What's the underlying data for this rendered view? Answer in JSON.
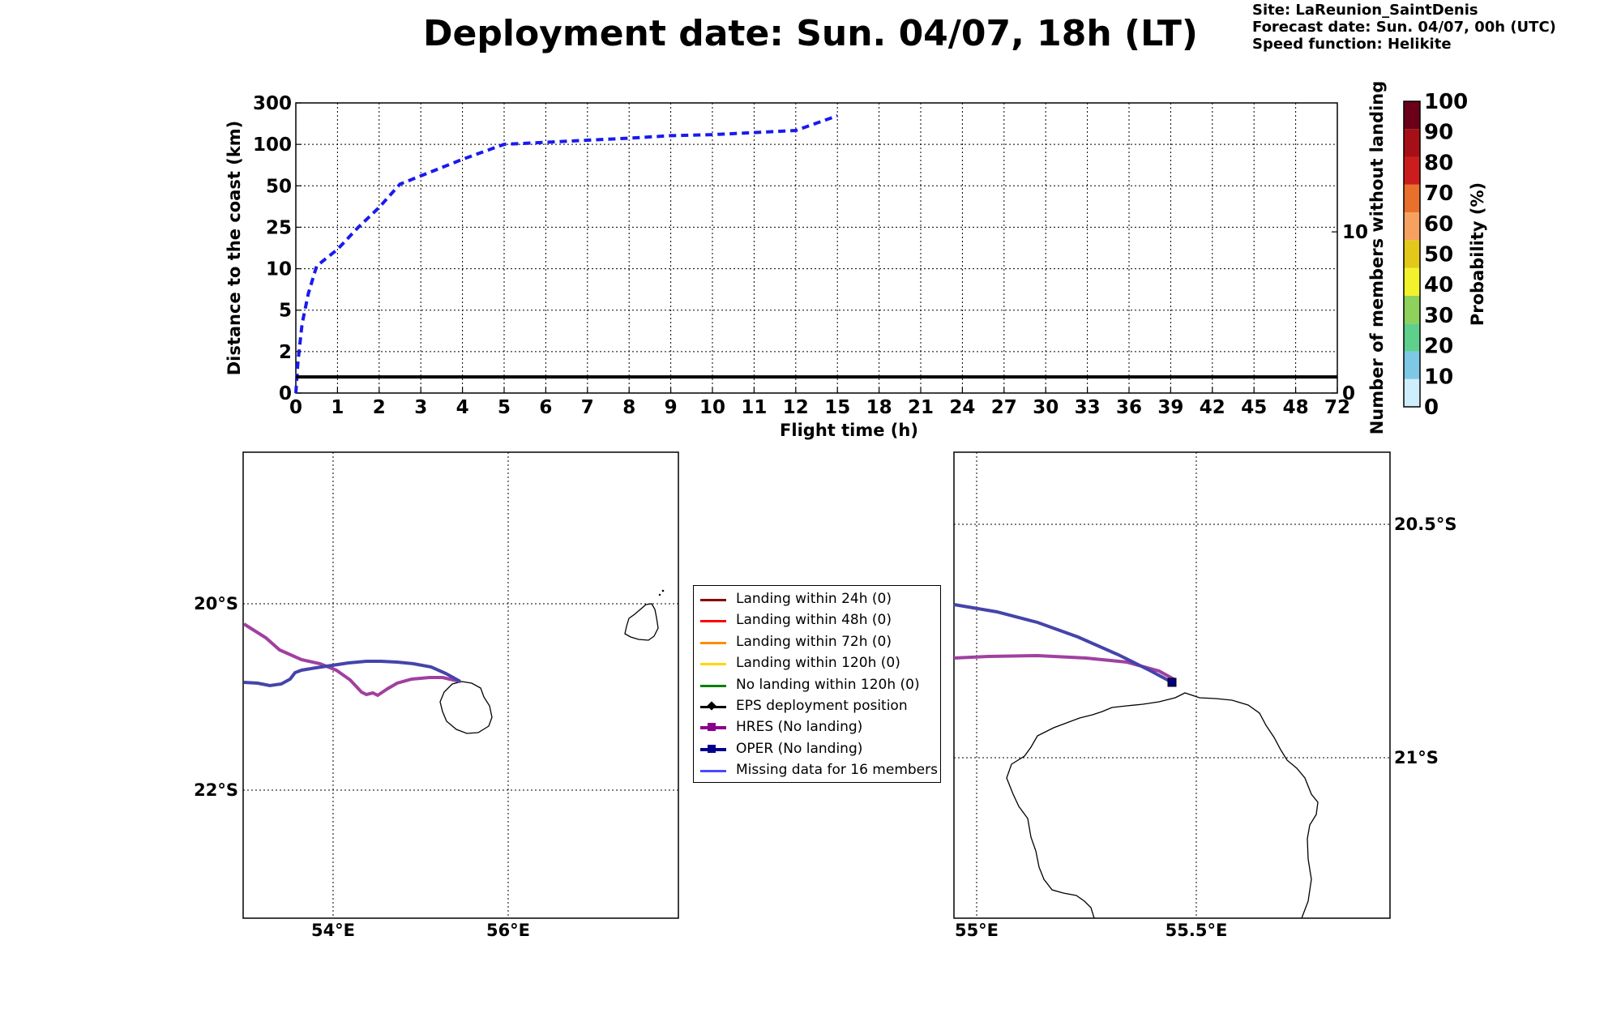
{
  "title": "Deployment date: Sun. 04/07, 18h (LT)",
  "meta": {
    "site": "Site: LaReunion_SaintDenis",
    "forecast": "Forecast date: Sun. 04/07, 00h (UTC)",
    "speed": "Speed function: Helikite"
  },
  "chart_data": [
    {
      "type": "line",
      "title": "",
      "xlabel": "Flight time (h)",
      "ylabel": "Distance to the coast (km)",
      "y2label": "Number of members without landing",
      "x_ticks": [
        "0",
        "1",
        "2",
        "3",
        "4",
        "5",
        "6",
        "7",
        "8",
        "9",
        "10",
        "11",
        "12",
        "15",
        "18",
        "21",
        "24",
        "27",
        "30",
        "33",
        "36",
        "39",
        "42",
        "45",
        "48",
        "72"
      ],
      "y_ticks": [
        "0",
        "2",
        "5",
        "10",
        "25",
        "50",
        "100",
        "300"
      ],
      "y2_ticks": [
        "0",
        "10"
      ],
      "grid": true,
      "series": [
        {
          "style": "dashed",
          "color": "#1a1aee",
          "x": [
            0,
            0.05,
            0.15,
            0.3,
            0.5,
            1.0,
            1.5,
            2.0,
            2.5,
            3.0,
            3.5,
            4.0,
            4.5,
            5.0,
            6.0,
            7.0,
            8.0,
            9.0,
            10.0,
            11.0,
            12.0,
            15.0
          ],
          "y": [
            0,
            1.5,
            4,
            7,
            11,
            17,
            25,
            37,
            52,
            62,
            72,
            82,
            91,
            100,
            110,
            120,
            130,
            142,
            147,
            157,
            167,
            238
          ]
        },
        {
          "style": "solid",
          "color": "#000000",
          "y2_constant": 1
        }
      ]
    },
    {
      "type": "colorbar",
      "label": "Probability (%)",
      "ticks": [
        "0",
        "10",
        "20",
        "30",
        "40",
        "50",
        "60",
        "70",
        "80",
        "90",
        "100"
      ],
      "colors": [
        "#cfeefd",
        "#7ec8e5",
        "#5fcf8c",
        "#8ed15b",
        "#f2f22c",
        "#e3c81a",
        "#f7a161",
        "#e8702c",
        "#cc1d1d",
        "#a50f15",
        "#6b0018"
      ]
    },
    {
      "type": "map",
      "x_ticks": [
        "54°E",
        "56°E"
      ],
      "y_ticks": [
        "20°S",
        "22°S"
      ],
      "lon_range": [
        53,
        58
      ],
      "lat_range": [
        -19.0,
        -24.0
      ]
    },
    {
      "type": "map",
      "x_ticks": [
        "55°E",
        "55.5°E"
      ],
      "y_ticks": [
        "20.5°S",
        "21°S"
      ],
      "lon_range": [
        54.95,
        55.95
      ],
      "lat_range": [
        -20.33,
        -21.33
      ]
    }
  ],
  "legend": [
    {
      "label": "Landing within 24h (0)",
      "color": "#8b0000",
      "kind": "line"
    },
    {
      "label": "Landing within 48h (0)",
      "color": "#ff0000",
      "kind": "line"
    },
    {
      "label": "Landing within 72h (0)",
      "color": "#ff8c00",
      "kind": "line"
    },
    {
      "label": "Landing within 120h (0)",
      "color": "#ffd700",
      "kind": "line"
    },
    {
      "label": "No landing within 120h (0)",
      "color": "#008000",
      "kind": "line"
    },
    {
      "label": "EPS deployment position",
      "color": "#000000",
      "kind": "diamond"
    },
    {
      "label": "HRES (No landing)",
      "color": "#8b008b",
      "kind": "square"
    },
    {
      "label": "OPER (No landing)",
      "color": "#00008b",
      "kind": "square"
    },
    {
      "label": "Missing data for 16 members",
      "color": "#4a4aff",
      "kind": "line"
    }
  ],
  "colors": {
    "hres": "#a040a0",
    "oper": "#4444aa"
  }
}
